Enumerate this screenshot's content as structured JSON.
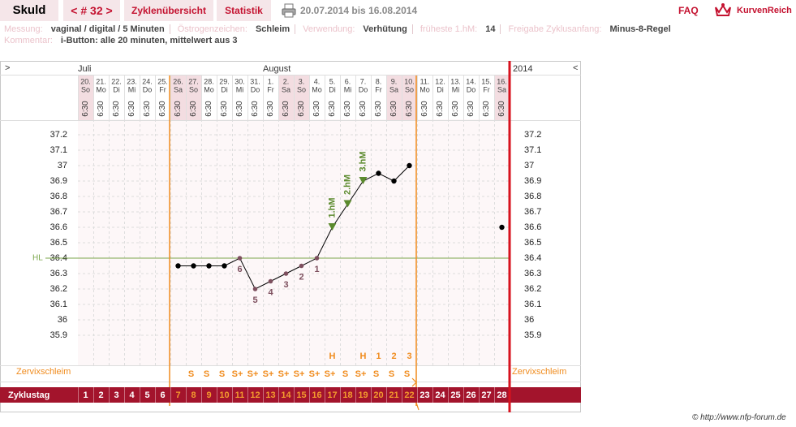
{
  "header": {
    "name": "Skuld",
    "cycle": "< # 32 >",
    "tabs": [
      "Zyklenübersicht",
      "Statistik"
    ],
    "range": "20.07.2014 bis 16.08.2014",
    "faq": "FAQ",
    "logo": "KurvenReich"
  },
  "info": {
    "fields": [
      {
        "label": "Messung:",
        "value": "vaginal / digital / 5 Minuten"
      },
      {
        "label": "Östrogenzeichen:",
        "value": "Schleim"
      },
      {
        "label": "Verwendung:",
        "value": "Verhütung"
      },
      {
        "label": "früheste 1.hM:",
        "value": "14"
      },
      {
        "label": "Freigabe Zyklusanfang:",
        "value": "Minus-8-Regel"
      }
    ],
    "comment": {
      "label": "Kommentar:",
      "value": "i-Button: alle 20 minuten, mittelwert aus 3"
    }
  },
  "chart_data": {
    "type": "line",
    "nav_left": ">",
    "nav_right": "<",
    "months": [
      "Juli",
      "August"
    ],
    "year": "2014",
    "days": [
      "20.",
      "21.",
      "22.",
      "23.",
      "24.",
      "25.",
      "26.",
      "27.",
      "28.",
      "29.",
      "30.",
      "31.",
      "1.",
      "2.",
      "3.",
      "4.",
      "5.",
      "6.",
      "7.",
      "8.",
      "9.",
      "10.",
      "11.",
      "12.",
      "13.",
      "14.",
      "15.",
      "16."
    ],
    "weekdays": [
      "So",
      "Mo",
      "Di",
      "Mi",
      "Do",
      "Fr",
      "Sa",
      "So",
      "Mo",
      "Di",
      "Mi",
      "Do",
      "Fr",
      "Sa",
      "So",
      "Mo",
      "Di",
      "Mi",
      "Do",
      "Fr",
      "Sa",
      "So",
      "Mo",
      "Di",
      "Mi",
      "Do",
      "Fr",
      "Sa"
    ],
    "times": [
      "6:30",
      "6:30",
      "6:30",
      "6:30",
      "6:30",
      "6:30",
      "6:30",
      "6:30",
      "6:30",
      "6:30",
      "6:30",
      "6:30",
      "6:30",
      "6:30",
      "6:30",
      "6:30",
      "6:30",
      "6:30",
      "6:30",
      "6:30",
      "6:30",
      "6:30",
      "6:30",
      "6:30",
      "6:30",
      "6:30",
      "6:30",
      "6:30"
    ],
    "column_shading": [
      "#f3dde1",
      null,
      null,
      null,
      null,
      null,
      "#f3dde1",
      "#f3dde1",
      null,
      null,
      null,
      null,
      null,
      "#f3dde1",
      "#f3dde1",
      null,
      null,
      null,
      null,
      null,
      "#f3dde1",
      "#f3dde1",
      null,
      null,
      null,
      null,
      null,
      "#f3dde1"
    ],
    "values": [
      null,
      null,
      null,
      null,
      null,
      null,
      36.35,
      36.35,
      36.35,
      36.35,
      36.4,
      36.2,
      36.25,
      36.3,
      36.35,
      36.4,
      36.6,
      36.75,
      36.9,
      36.95,
      36.9,
      37.0,
      null,
      null,
      null,
      null,
      null,
      36.6
    ],
    "point_colors": [
      null,
      null,
      null,
      null,
      null,
      null,
      "#000000",
      "#000000",
      "#000000",
      "#000000",
      "#7d4f5e",
      "#7d4f5e",
      "#7d4f5e",
      "#7d4f5e",
      "#7d4f5e",
      "#7d4f5e",
      "#5b8a2d",
      "#5b8a2d",
      "#5b8a2d",
      "#000000",
      "#000000",
      "#000000",
      null,
      null,
      null,
      null,
      null,
      "#000000"
    ],
    "point_shapes": [
      null,
      null,
      null,
      null,
      null,
      null,
      "circle",
      "circle",
      "circle",
      "circle",
      "circle",
      "circle",
      "circle",
      "circle",
      "circle",
      "circle",
      "triangle",
      "triangle",
      "triangle",
      "circle",
      "circle",
      "circle",
      null,
      null,
      null,
      null,
      null,
      "circle"
    ],
    "point_labels": [
      null,
      null,
      null,
      null,
      null,
      null,
      null,
      null,
      null,
      null,
      "6",
      "5",
      "4",
      "3",
      "2",
      "1",
      "1.hM",
      "2.hM",
      "3.hM",
      null,
      null,
      null,
      null,
      null,
      null,
      null,
      null,
      null
    ],
    "line_color": "#000000",
    "ylim": [
      35.7,
      37.3
    ],
    "yticks": [
      35.9,
      36,
      36.1,
      36.2,
      36.3,
      36.4,
      36.5,
      36.6,
      36.7,
      36.8,
      36.9,
      37,
      37.1,
      37.2
    ],
    "grid": true,
    "hl": {
      "label": "HL",
      "value": 36.4,
      "color": "#7aa64a"
    },
    "peak_marks": [
      null,
      null,
      null,
      null,
      null,
      null,
      null,
      null,
      null,
      null,
      null,
      null,
      null,
      null,
      null,
      null,
      "H",
      null,
      "H",
      "1",
      "2",
      "3",
      null,
      null,
      null,
      null,
      null,
      null
    ],
    "cervix_label": "Zervixschleim",
    "cervix": [
      null,
      null,
      null,
      null,
      null,
      null,
      null,
      "S",
      "S",
      "S",
      "S+",
      "S+",
      "S+",
      "S+",
      "S+",
      "S+",
      "S+",
      "S",
      "S+",
      "S",
      "S",
      "S",
      null,
      null,
      null,
      null,
      null,
      null
    ],
    "cycle_label": "Zyklustag",
    "cycle_days": [
      1,
      2,
      3,
      4,
      5,
      6,
      7,
      8,
      9,
      10,
      11,
      12,
      13,
      14,
      15,
      16,
      17,
      18,
      19,
      20,
      21,
      22,
      23,
      24,
      25,
      26,
      27,
      28
    ],
    "cycle_day_colors": [
      "#ffffff",
      "#ffffff",
      "#ffffff",
      "#ffffff",
      "#ffffff",
      "#ffffff",
      "#f39a2e",
      "#f39a2e",
      "#f39a2e",
      "#f39a2e",
      "#f39a2e",
      "#f39a2e",
      "#f39a2e",
      "#f39a2e",
      "#f39a2e",
      "#f39a2e",
      "#f39a2e",
      "#f39a2e",
      "#f39a2e",
      "#f39a2e",
      "#f39a2e",
      "#f39a2e",
      "#ffffff",
      "#ffffff",
      "#ffffff",
      "#ffffff",
      "#ffffff",
      "#ffffff"
    ],
    "accent_color": "#f08c1e"
  },
  "footer": "© http://www.nfp-forum.de"
}
